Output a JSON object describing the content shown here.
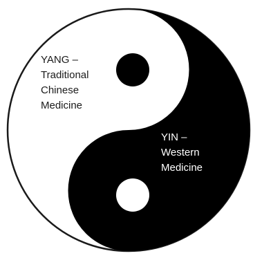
{
  "colors": {
    "yin": "#000000",
    "yang": "#ffffff",
    "outline": "#1a1a1a"
  },
  "symbol": {
    "icon": "yin-yang-icon"
  },
  "yang": {
    "lines": [
      "YANG –",
      "Traditional",
      "Chinese",
      "Medicine"
    ]
  },
  "yin": {
    "lines": [
      "YIN –",
      "Western",
      "Medicine"
    ]
  }
}
